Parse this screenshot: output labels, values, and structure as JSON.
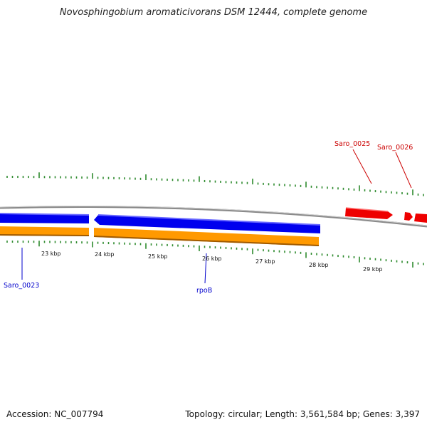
{
  "title": "Novosphingobium aromaticivorans DSM 12444, complete genome",
  "footer": {
    "accession": "Accession: NC_007794",
    "stats": "Topology: circular; Length: 3,561,584 bp; Genes: 3,397"
  },
  "scale_labels": [
    "23 kbp",
    "24 kbp",
    "25 kbp",
    "26 kbp",
    "27 kbp",
    "28 kbp",
    "29 kbp"
  ],
  "gene_labels": [
    {
      "text": "Saro_0023",
      "color": "#0000cc"
    },
    {
      "text": "rpoB",
      "color": "#0000cc"
    },
    {
      "text": "Saro_0025",
      "color": "#cc0000"
    },
    {
      "text": "Saro_0026",
      "color": "#cc0000"
    }
  ],
  "colors": {
    "forward_cds": "#0000ee",
    "reverse_cds": "#ee0000",
    "gene_feature": "#ff9900",
    "backbone": "#888888",
    "ticks": "#2e8b2e"
  }
}
